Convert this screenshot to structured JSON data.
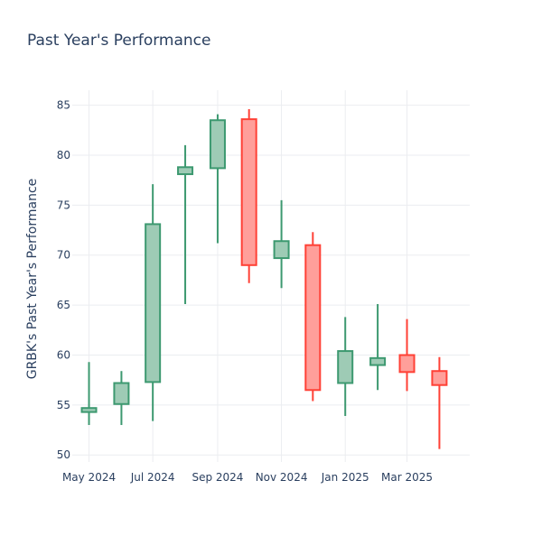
{
  "chart_data": {
    "type": "candlestick",
    "title": "Past Year's Performance",
    "xlabel": "",
    "ylabel": "GRBK's Past Year's Performance",
    "ylim": [
      49.3,
      86.5
    ],
    "yticks": [
      50,
      55,
      60,
      65,
      70,
      75,
      80,
      85
    ],
    "xlim": [
      "2024-04-15",
      "2025-04-30"
    ],
    "xticks": [
      {
        "date": "2024-05-01",
        "label": "May 2024"
      },
      {
        "date": "2024-07-01",
        "label": "Jul 2024"
      },
      {
        "date": "2024-09-01",
        "label": "Sep 2024"
      },
      {
        "date": "2024-11-01",
        "label": "Nov 2024"
      },
      {
        "date": "2025-01-01",
        "label": "Jan 2025"
      },
      {
        "date": "2025-03-01",
        "label": "Mar 2025"
      }
    ],
    "grid": true,
    "increasing_color": "#3d9970",
    "increasing_fill": "#9ecbb5",
    "decreasing_color": "#ff4136",
    "decreasing_fill": "#ff9f9a",
    "candles": [
      {
        "date": "2024-05-01",
        "open": 54.3,
        "high": 59.3,
        "low": 53.0,
        "close": 54.7
      },
      {
        "date": "2024-06-01",
        "open": 55.1,
        "high": 58.4,
        "low": 53.0,
        "close": 57.2
      },
      {
        "date": "2024-07-01",
        "open": 57.3,
        "high": 77.1,
        "low": 53.4,
        "close": 73.1
      },
      {
        "date": "2024-08-01",
        "open": 78.1,
        "high": 81.0,
        "low": 65.1,
        "close": 78.8
      },
      {
        "date": "2024-09-01",
        "open": 78.7,
        "high": 84.1,
        "low": 71.2,
        "close": 83.5
      },
      {
        "date": "2024-10-01",
        "open": 83.6,
        "high": 84.6,
        "low": 67.2,
        "close": 69.0
      },
      {
        "date": "2024-11-01",
        "open": 69.7,
        "high": 75.5,
        "low": 66.7,
        "close": 71.4
      },
      {
        "date": "2024-12-01",
        "open": 71.0,
        "high": 72.3,
        "low": 55.4,
        "close": 56.5
      },
      {
        "date": "2025-01-01",
        "open": 57.2,
        "high": 63.8,
        "low": 53.9,
        "close": 60.4
      },
      {
        "date": "2025-02-01",
        "open": 59.0,
        "high": 65.1,
        "low": 56.5,
        "close": 59.7
      },
      {
        "date": "2025-03-01",
        "open": 60.0,
        "high": 63.6,
        "low": 56.4,
        "close": 58.3
      },
      {
        "date": "2025-04-01",
        "open": 58.4,
        "high": 59.8,
        "low": 50.6,
        "close": 57.0
      }
    ]
  }
}
